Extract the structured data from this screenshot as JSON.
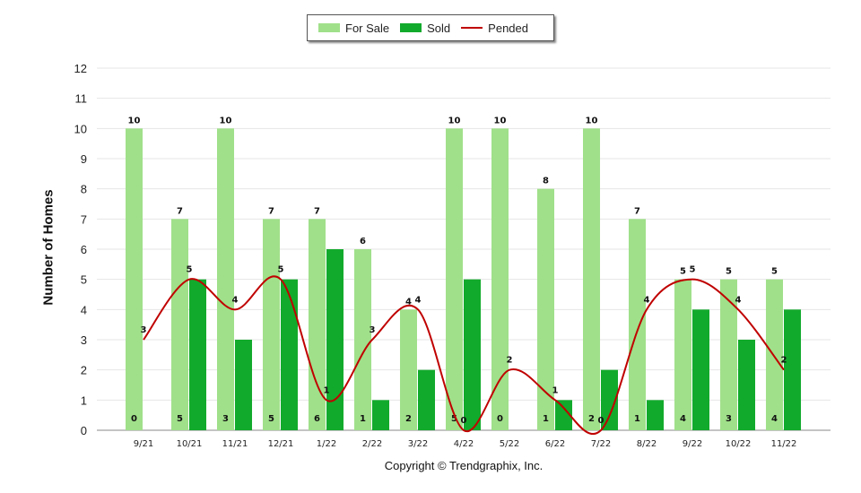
{
  "legend": {
    "for_sale_label": "For Sale",
    "sold_label": "Sold",
    "pended_label": "Pended"
  },
  "copyright": "Copyright © Trendgraphix, Inc.",
  "colors": {
    "for_sale": "#a0e08a",
    "sold": "#12aa2c",
    "pended": "#c00000",
    "grid": "#e6e6e6",
    "axis": "#888888"
  },
  "chart_data": {
    "type": "bar",
    "title": "",
    "xlabel": "",
    "ylabel": "Number of Homes",
    "ylim": [
      0,
      12
    ],
    "yticks": [
      0,
      1,
      2,
      3,
      4,
      5,
      6,
      7,
      8,
      9,
      10,
      11,
      12
    ],
    "grid": true,
    "legend_position": "top-center",
    "categories": [
      "9/21",
      "10/21",
      "11/21",
      "12/21",
      "1/22",
      "2/22",
      "3/22",
      "4/22",
      "5/22",
      "6/22",
      "7/22",
      "8/22",
      "9/22",
      "10/22",
      "11/22"
    ],
    "series": [
      {
        "name": "For Sale",
        "type": "bar",
        "values": [
          10,
          7,
          10,
          7,
          7,
          6,
          4,
          10,
          10,
          8,
          10,
          7,
          5,
          5,
          5
        ]
      },
      {
        "name": "Sold",
        "type": "bar",
        "values": [
          0,
          5,
          3,
          5,
          6,
          1,
          2,
          5,
          0,
          1,
          2,
          1,
          4,
          3,
          4
        ]
      },
      {
        "name": "Pended",
        "type": "line",
        "values": [
          3,
          5,
          4,
          5,
          1,
          3,
          4,
          0,
          2,
          1,
          0,
          4,
          5,
          4,
          2
        ]
      }
    ]
  }
}
